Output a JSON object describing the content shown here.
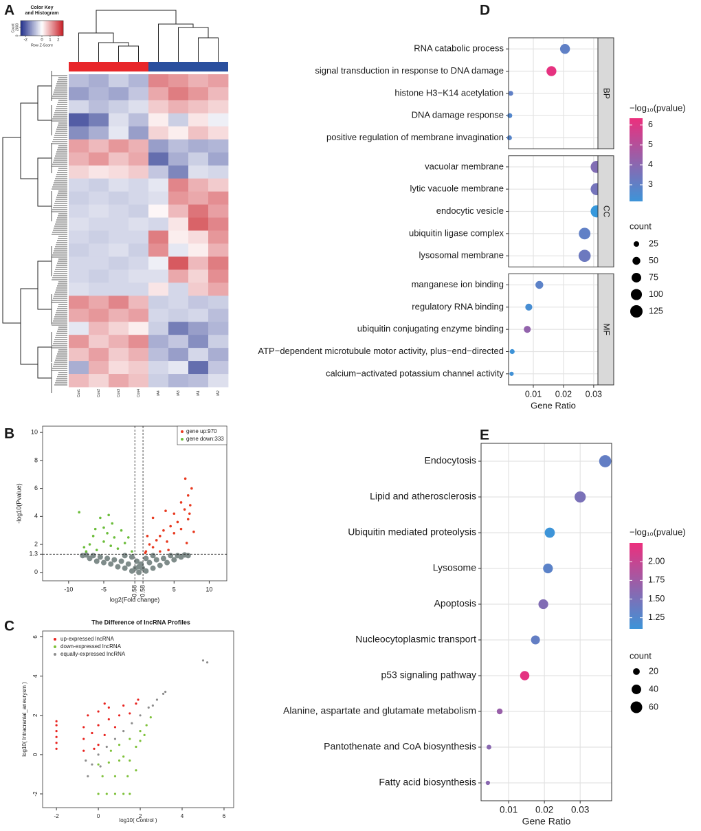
{
  "chart_data": [
    {
      "type": "heatmap",
      "panel": "A",
      "key_title": [
        "Color Key",
        "and Histogram"
      ],
      "key_xlabel": "Row Z-Score",
      "key_ylabel": "Count",
      "key_xticks": [
        -2,
        0,
        1,
        2
      ],
      "key_yticks": [
        0,
        2000
      ],
      "key_ylim": [
        0,
        3500
      ],
      "zlim": [
        -2.6,
        2.6
      ],
      "colors": [
        "#1f2d8a",
        "#ffffff",
        "#c81d25"
      ],
      "columns": [
        "Con1",
        "Con2",
        "Con3",
        "Con4",
        "IA4",
        "IA3",
        "IA1",
        "IA2"
      ],
      "matrix": [
        [
          -0.8,
          -1.0,
          -0.6,
          -0.9,
          1.4,
          1.2,
          0.9,
          1.1
        ],
        [
          -1.2,
          -0.9,
          -1.1,
          -0.7,
          1.0,
          1.5,
          1.2,
          0.8
        ],
        [
          -0.5,
          -0.8,
          -0.6,
          -0.4,
          0.6,
          0.9,
          0.7,
          0.5
        ],
        [
          -2.0,
          -1.6,
          -0.4,
          -0.8,
          0.2,
          -0.6,
          0.3,
          -0.2
        ],
        [
          -1.4,
          -1.0,
          -0.3,
          -1.2,
          0.5,
          0.2,
          0.7,
          0.4
        ],
        [
          1.1,
          0.8,
          1.2,
          0.9,
          -1.2,
          -0.8,
          -1.0,
          -0.9
        ],
        [
          0.9,
          1.2,
          0.7,
          1.0,
          -1.8,
          -1.0,
          -0.6,
          -1.1
        ],
        [
          0.5,
          0.3,
          0.4,
          0.6,
          -0.7,
          -1.5,
          -0.4,
          -0.5
        ],
        [
          -0.5,
          -0.6,
          -0.4,
          -0.5,
          -0.3,
          1.4,
          0.9,
          0.6
        ],
        [
          -0.6,
          -0.5,
          -0.6,
          -0.5,
          -0.4,
          1.2,
          1.0,
          1.3
        ],
        [
          -0.5,
          -0.4,
          -0.5,
          -0.6,
          0.1,
          0.8,
          1.6,
          1.1
        ],
        [
          -0.4,
          -0.5,
          -0.5,
          -0.4,
          -0.5,
          0.3,
          1.8,
          1.4
        ],
        [
          -0.5,
          -0.6,
          -0.5,
          -0.5,
          1.5,
          0.2,
          0.4,
          1.2
        ],
        [
          -0.6,
          -0.5,
          -0.4,
          -0.6,
          1.3,
          -0.3,
          0.2,
          0.9
        ],
        [
          -0.5,
          -0.5,
          -0.6,
          -0.5,
          -0.2,
          1.9,
          0.8,
          1.5
        ],
        [
          -0.5,
          -0.6,
          -0.5,
          -0.4,
          -0.4,
          1.0,
          0.5,
          1.3
        ],
        [
          -0.4,
          -0.5,
          -0.5,
          -0.5,
          0.3,
          -0.5,
          0.6,
          1.0
        ],
        [
          1.3,
          1.0,
          1.4,
          0.8,
          -0.6,
          -0.5,
          -0.7,
          -0.6
        ],
        [
          1.0,
          1.2,
          0.9,
          1.1,
          -0.5,
          -0.6,
          -0.5,
          -0.8
        ],
        [
          -0.3,
          0.8,
          0.5,
          0.2,
          -0.6,
          -1.6,
          -1.2,
          -0.9
        ],
        [
          1.2,
          0.6,
          0.9,
          1.3,
          -1.0,
          -0.7,
          -1.4,
          -0.6
        ],
        [
          0.7,
          1.1,
          0.6,
          0.9,
          -0.8,
          -1.2,
          -0.5,
          -1.0
        ],
        [
          -1.0,
          0.9,
          0.4,
          0.6,
          -0.5,
          -0.3,
          -1.8,
          -0.7
        ],
        [
          0.8,
          0.5,
          1.0,
          0.7,
          -0.6,
          -0.9,
          -0.8,
          -0.4
        ]
      ]
    },
    {
      "type": "scatter",
      "panel": "B",
      "xlabel": "log2(Fold change)",
      "ylabel": "-log10(Pvalue)",
      "xlim": [
        -13.7,
        12.5
      ],
      "ylim": [
        -0.6,
        10.45
      ],
      "xticks": [
        -10,
        -5,
        -0.58,
        0.58,
        5,
        10
      ],
      "yticks": [
        0,
        1.3,
        2,
        4,
        6,
        8,
        10
      ],
      "hlines": [
        1.3
      ],
      "vlines": [
        -0.58,
        0.58
      ],
      "legend": "upper right",
      "series": [
        {
          "color": "#7f8c8a",
          "x": [
            -8,
            -7,
            -6,
            -5,
            -4,
            -3,
            -2,
            -1,
            0,
            1,
            2,
            3,
            4,
            5,
            6,
            7,
            -7.5,
            -6.5,
            -5.5,
            -4.5,
            -3.5,
            -2.5,
            -1.5,
            -0.5,
            0.5,
            1.5,
            2.5,
            3.5,
            4.5,
            5.5,
            6.5,
            -0.3,
            0.3,
            -1,
            1,
            -2,
            2,
            0
          ],
          "values": [
            1.2,
            1,
            0.8,
            0.7,
            0.6,
            0.4,
            0.3,
            0.1,
            0,
            0.1,
            0.3,
            0.5,
            0.7,
            0.9,
            1.1,
            1.2,
            1.25,
            1.2,
            1.1,
            1,
            0.9,
            0.8,
            0.6,
            0.3,
            0.3,
            0.7,
            0.9,
            1,
            1.2,
            1.2,
            1.25,
            0.8,
            0.6,
            1.1,
            1,
            1.2,
            1.2,
            0.4
          ]
        },
        {
          "name": "gene up:970",
          "color": "#e8391f",
          "x": [
            1,
            1.5,
            2,
            2.5,
            3,
            3,
            3.5,
            4,
            4.5,
            5,
            5.5,
            5,
            6,
            6.5,
            6,
            7,
            7,
            7.3,
            6.6,
            7.5,
            7.2,
            2,
            3.8,
            1.2,
            0.9,
            4.2,
            6.8,
            7.8
          ],
          "values": [
            1.5,
            2,
            1.8,
            2.3,
            2.6,
            1.5,
            3,
            2.2,
            3.3,
            2.8,
            3.6,
            4.2,
            3.1,
            4.5,
            5,
            3.8,
            5.5,
            4.8,
            6.7,
            6,
            4.2,
            3.9,
            4.4,
            2.6,
            1.4,
            1.6,
            2.1,
            2.9
          ]
        },
        {
          "name": "gene down:333",
          "color": "#6bbd3a",
          "x": [
            -1,
            -2,
            -3,
            -3.5,
            -4,
            -4.5,
            -5,
            -5,
            -6,
            -6.5,
            -7,
            -7.5,
            -8.5,
            -5.5,
            -4.3,
            -2.5,
            -1.5,
            -3.8,
            -6.2,
            -7.8
          ],
          "values": [
            1.5,
            2.1,
            1.7,
            2.5,
            1.9,
            2.8,
            3.2,
            2.2,
            1.6,
            2.6,
            2,
            1.5,
            4.3,
            3.9,
            4.1,
            3,
            2.5,
            3.5,
            3.1,
            1.8
          ]
        }
      ]
    },
    {
      "type": "scatter",
      "panel": "C",
      "title": "The Difference of lncRNA Profiles",
      "xlabel": "log10( Control )",
      "ylabel": "log10( Intracranial_aneurysm )",
      "xlim": [
        -2.66,
        6.46
      ],
      "ylim": [
        -2.7,
        6.3
      ],
      "xticks": [
        -2,
        0,
        2,
        4,
        6
      ],
      "yticks": [
        -2,
        0,
        2,
        4,
        6
      ],
      "legend": "upper left",
      "series": [
        {
          "name": "up-expressed lncRNA",
          "color": "#e8231f",
          "x": [
            -2,
            -2,
            -2,
            -2,
            -2,
            -2,
            -0.7,
            -0.7,
            -0.7,
            -0.5,
            -0.3,
            0,
            0,
            0,
            0.3,
            0.5,
            0.5,
            0.8,
            1,
            1.2,
            1.5,
            1.8,
            1.9,
            -0.2,
            0.3
          ],
          "values": [
            0.3,
            0.6,
            0.9,
            1.2,
            1.5,
            1.7,
            0.2,
            0.8,
            1.4,
            2,
            1.1,
            0.5,
            1.5,
            2.2,
            1,
            1.8,
            2.4,
            1.4,
            2,
            2.5,
            2.1,
            2.6,
            2.8,
            0.3,
            2.6
          ]
        },
        {
          "name": "down-expressed lncRNA",
          "color": "#7ec13a",
          "x": [
            0,
            0.5,
            1,
            1.5,
            0.6,
            1,
            1.5,
            2,
            2.3,
            1.8,
            2,
            1.2,
            0.2,
            0.8,
            1.4,
            1.8,
            0,
            0.4,
            0.8,
            1.2,
            1.5,
            2.5,
            2.2
          ],
          "values": [
            -0.5,
            -0.4,
            -0.3,
            -0.3,
            0.2,
            0.5,
            0.8,
            1.2,
            1.5,
            0.4,
            0.7,
            -0.1,
            -1.1,
            -1.1,
            -1.1,
            -0.8,
            -2,
            -2,
            -2,
            -2,
            -2,
            1.9,
            1
          ]
        },
        {
          "name": "equally-expressed lncRNA",
          "color": "#8c8c8c",
          "x": [
            -0.3,
            0,
            0.4,
            0.8,
            1.2,
            1.6,
            2,
            2.4,
            2.8,
            3.1,
            3.2,
            2.6,
            -0.6,
            -0.5,
            5,
            5.2,
            0.1
          ],
          "values": [
            -0.5,
            0,
            0.4,
            0.8,
            1.2,
            1.6,
            2,
            2.4,
            2.8,
            3.1,
            3.2,
            2.5,
            -0.3,
            -1.1,
            4.8,
            4.7,
            -0.6
          ]
        }
      ]
    },
    {
      "type": "dot",
      "panel": "D",
      "xlabel": "Gene Ratio",
      "xlim": [
        0.0018,
        0.0314
      ],
      "xticks": [
        0.01,
        0.02,
        0.03
      ],
      "color_title": "−log₁₀(pvalue)",
      "color_lim": [
        2.17,
        6.34
      ],
      "color_ticks": [
        3,
        4,
        5,
        6
      ],
      "color_low": "#3d94d8",
      "color_high": "#ec2f7d",
      "size_title": "count",
      "size_ticks": [
        25,
        50,
        75,
        100,
        125
      ],
      "facets": [
        {
          "name": "BP",
          "categories": [
            "RNA catabolic process",
            "signal transduction in response to DNA damage",
            "histone H3−K14 acetylation",
            "DNA damage response",
            "positive regulation of membrane invagination"
          ],
          "values": [
            0.0205,
            0.016,
            0.0025,
            0.0022,
            0.0021
          ],
          "color_values": [
            3.0,
            6.2,
            3.0,
            2.7,
            2.8
          ],
          "sizes": [
            80,
            80,
            20,
            20,
            20
          ]
        },
        {
          "name": "CC",
          "categories": [
            "vacuolar membrane",
            "lytic vacuole membrane",
            "endocytic vesicle",
            "ubiquitin ligase complex",
            "lysosomal membrane"
          ],
          "values": [
            0.031,
            0.031,
            0.031,
            0.027,
            0.027
          ],
          "color_values": [
            3.8,
            3.5,
            2.0,
            3.0,
            3.3
          ],
          "sizes": [
            120,
            120,
            120,
            110,
            120
          ]
        },
        {
          "name": "MF",
          "categories": [
            "manganese ion binding",
            "regulatory RNA binding",
            "ubiquitin conjugating enzyme binding",
            "ATP−dependent microtubule motor activity, plus−end−directed",
            "calcium−activated potassium channel activity"
          ],
          "values": [
            0.012,
            0.0085,
            0.008,
            0.003,
            0.0028
          ],
          "color_values": [
            2.9,
            2.4,
            4.2,
            2.2,
            2.3
          ],
          "sizes": [
            50,
            40,
            40,
            20,
            15
          ]
        }
      ]
    },
    {
      "type": "dot",
      "panel": "E",
      "xlabel": "Gene Ratio",
      "xlim": [
        0.0023,
        0.0388
      ],
      "xticks": [
        0.01,
        0.02,
        0.03
      ],
      "color_title": "−log₁₀(pvalue)",
      "color_lim": [
        1.1,
        2.25
      ],
      "color_ticks": [
        {
          "value": 1.25,
          "label": "1.25"
        },
        {
          "value": 1.5,
          "label": "1.50"
        },
        {
          "value": 1.75,
          "label": "1.75"
        },
        {
          "value": 2,
          "label": "2.00"
        }
      ],
      "color_low": "#3d94d8",
      "color_high": "#ec2f7d",
      "size_title": "count",
      "size_ticks": [
        20,
        40,
        60
      ],
      "categories": [
        "Endocytosis",
        "Lipid and atherosclerosis",
        "Ubiquitin mediated proteolysis",
        "Lysosome",
        "Apoptosis",
        "Nucleocytoplasmic transport",
        "p53 signaling pathway",
        "Alanine, aspartate and glutamate metabolism",
        "Pantothenate and CoA biosynthesis",
        "Fatty acid biosynthesis"
      ],
      "values": [
        0.037,
        0.03,
        0.0215,
        0.021,
        0.0197,
        0.0175,
        0.0145,
        0.0075,
        0.0045,
        0.0042
      ],
      "color_values": [
        1.35,
        1.5,
        1.1,
        1.3,
        1.55,
        1.35,
        2.2,
        1.7,
        1.6,
        1.6
      ],
      "sizes": [
        65,
        55,
        45,
        42,
        42,
        35,
        38,
        15,
        10,
        8
      ]
    }
  ]
}
